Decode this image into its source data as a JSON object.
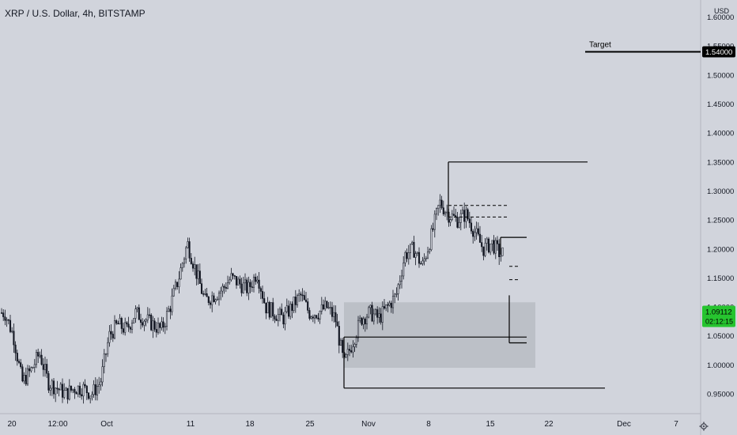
{
  "header": {
    "title": "XRP / U.S. Dollar, 4h, BITSTAMP"
  },
  "colors": {
    "background": "#d1d4dc",
    "axis_text": "#131722",
    "candle": "#131722",
    "zone": "#b9bcc3",
    "price_badge": "#26c42f",
    "target_badge": "#000000"
  },
  "icons": {
    "settings": "gear-icon"
  },
  "chart_data": {
    "type": "candlestick",
    "title": "XRP / U.S. Dollar, 4h, BITSTAMP",
    "ylabel": "USD",
    "ylim": [
      0.92,
      1.67
    ],
    "y_ticks": [
      "0.95000",
      "1.00000",
      "1.05000",
      "1.10000",
      "1.15000",
      "1.20000",
      "1.25000",
      "1.30000",
      "1.35000",
      "1.40000",
      "1.45000",
      "1.50000",
      "1.55000",
      "1.60000"
    ],
    "x_ticks": [
      "20",
      "12:00",
      "Oct",
      "11",
      "18",
      "25",
      "Nov",
      "8",
      "15",
      "22",
      "Dec",
      "7"
    ],
    "price_path": [
      [
        "2021-09-19",
        1.09
      ],
      [
        "2021-09-20",
        1.05
      ],
      [
        "2021-09-21",
        0.97
      ],
      [
        "2021-09-22",
        0.99
      ],
      [
        "2021-09-23",
        1.02
      ],
      [
        "2021-09-24",
        0.97
      ],
      [
        "2021-09-25",
        0.96
      ],
      [
        "2021-09-26",
        0.95
      ],
      [
        "2021-09-27",
        0.96
      ],
      [
        "2021-09-28",
        0.96
      ],
      [
        "2021-09-29",
        0.95
      ],
      [
        "2021-09-30",
        0.97
      ],
      [
        "2021-10-01",
        1.05
      ],
      [
        "2021-10-02",
        1.07
      ],
      [
        "2021-10-03",
        1.06
      ],
      [
        "2021-10-04",
        1.09
      ],
      [
        "2021-10-05",
        1.08
      ],
      [
        "2021-10-06",
        1.07
      ],
      [
        "2021-10-07",
        1.06
      ],
      [
        "2021-10-08",
        1.1
      ],
      [
        "2021-10-09",
        1.15
      ],
      [
        "2021-10-10",
        1.21
      ],
      [
        "2021-10-11",
        1.16
      ],
      [
        "2021-10-12",
        1.11
      ],
      [
        "2021-10-13",
        1.12
      ],
      [
        "2021-10-14",
        1.13
      ],
      [
        "2021-10-15",
        1.15
      ],
      [
        "2021-10-16",
        1.14
      ],
      [
        "2021-10-17",
        1.13
      ],
      [
        "2021-10-18",
        1.16
      ],
      [
        "2021-10-19",
        1.1
      ],
      [
        "2021-10-20",
        1.09
      ],
      [
        "2021-10-21",
        1.08
      ],
      [
        "2021-10-22",
        1.1
      ],
      [
        "2021-10-23",
        1.12
      ],
      [
        "2021-10-24",
        1.09
      ],
      [
        "2021-10-25",
        1.09
      ],
      [
        "2021-10-26",
        1.1
      ],
      [
        "2021-10-27",
        1.08
      ],
      [
        "2021-10-28",
        1.0
      ],
      [
        "2021-10-29",
        1.04
      ],
      [
        "2021-10-30",
        1.08
      ],
      [
        "2021-10-31",
        1.09
      ],
      [
        "2021-11-01",
        1.08
      ],
      [
        "2021-11-02",
        1.1
      ],
      [
        "2021-11-03",
        1.12
      ],
      [
        "2021-11-04",
        1.19
      ],
      [
        "2021-11-05",
        1.2
      ],
      [
        "2021-11-06",
        1.17
      ],
      [
        "2021-11-07",
        1.22
      ],
      [
        "2021-11-08",
        1.28
      ],
      [
        "2021-11-09",
        1.26
      ],
      [
        "2021-11-10",
        1.25
      ],
      [
        "2021-11-11",
        1.26
      ],
      [
        "2021-11-12",
        1.23
      ],
      [
        "2021-11-13",
        1.2
      ],
      [
        "2021-11-14",
        1.21
      ],
      [
        "2021-11-15",
        1.19
      ],
      [
        "2021-11-16",
        1.2
      ],
      [
        "2021-11-17",
        1.19
      ],
      [
        "2021-11-18",
        1.1
      ],
      [
        "2021-11-19",
        1.09
      ]
    ],
    "last_price": "1.09112",
    "countdown": "02:12:15",
    "annotations": [
      {
        "type": "label",
        "text": "Target"
      },
      {
        "type": "hline",
        "price": 1.54,
        "label": "1.54000"
      },
      {
        "type": "hline",
        "price": 1.35,
        "x_start": "2021-11-09",
        "x_end": "2021-11-25"
      },
      {
        "type": "dashed",
        "price": 1.275,
        "x_start": "2021-11-09",
        "x_end": "2021-11-16"
      },
      {
        "type": "dashed",
        "price": 1.255,
        "x_start": "2021-11-09",
        "x_end": "2021-11-16"
      },
      {
        "type": "hline",
        "price": 1.22,
        "x_start": "2021-11-15",
        "x_end": "2021-11-18"
      },
      {
        "type": "dashed",
        "price": 1.17,
        "x_start": "2021-11-16",
        "x_end": "2021-11-17"
      },
      {
        "type": "dashed",
        "price": 1.147,
        "x_start": "2021-11-16",
        "x_end": "2021-11-17"
      },
      {
        "type": "hline",
        "price": 1.038,
        "x_start": "2021-11-16",
        "x_end": "2021-11-18"
      },
      {
        "type": "hline",
        "price": 1.048,
        "x_start": "2021-10-28",
        "x_end": "2021-11-18"
      },
      {
        "type": "hline",
        "price": 0.96,
        "x_start": "2021-10-28",
        "x_end": "2021-11-27"
      },
      {
        "type": "zone",
        "price_top": 1.108,
        "price_bottom": 0.995,
        "x_start": "2021-10-28",
        "x_end": "2021-11-19"
      }
    ]
  }
}
